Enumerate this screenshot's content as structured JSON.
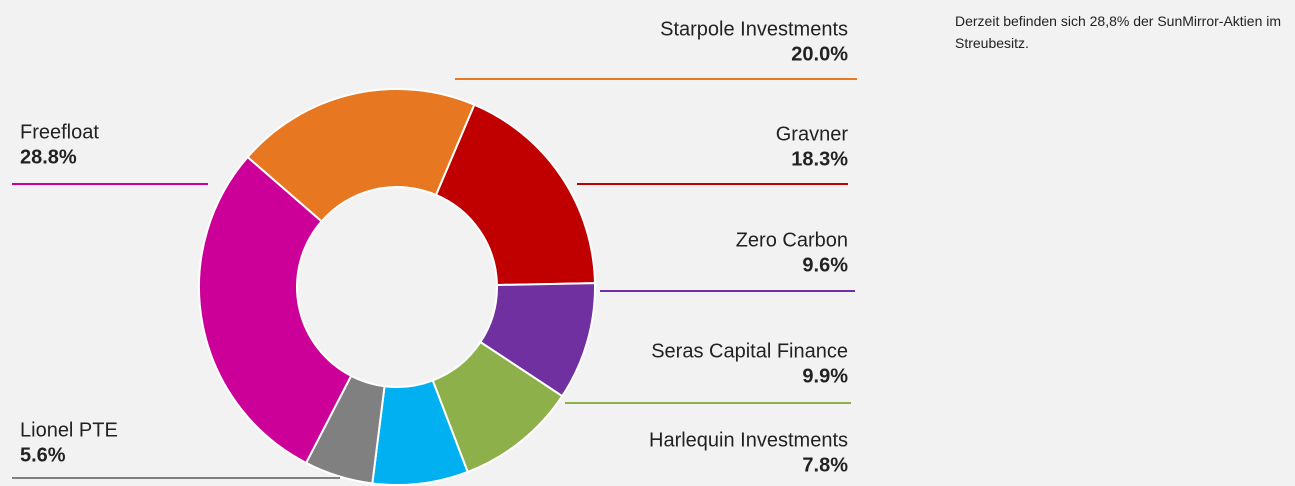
{
  "chart_data": {
    "type": "donut",
    "labels": [
      "Starpole Investments",
      "Gravner",
      "Zero Carbon",
      "Seras Capital Finance",
      "Harlequin Investments",
      "Lionel PTE",
      "Freefloat"
    ],
    "values": [
      20.0,
      18.3,
      9.6,
      9.9,
      7.8,
      5.6,
      28.8
    ],
    "value_labels": [
      "20.0%",
      "18.3%",
      "9.6%",
      "9.9%",
      "7.8%",
      "5.6%",
      "28.8%"
    ],
    "colors": [
      "#e87722",
      "#c00000",
      "#7030a0",
      "#8db04a",
      "#00b0f0",
      "#808080",
      "#cc0099"
    ],
    "note": "Derzeit befinden sich 28,8% der SunMirror-Aktien im Streubesitz."
  }
}
